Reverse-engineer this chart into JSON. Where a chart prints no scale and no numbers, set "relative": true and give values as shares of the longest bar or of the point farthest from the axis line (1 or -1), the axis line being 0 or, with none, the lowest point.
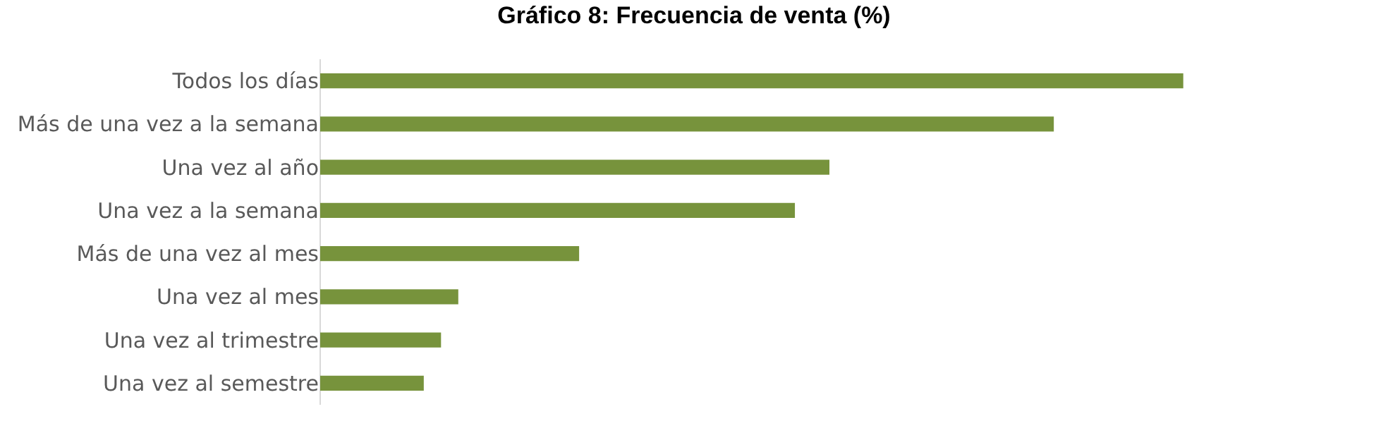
{
  "chart_data": {
    "type": "bar",
    "orientation": "horizontal",
    "relative": true,
    "title": "Gráfico 8: Frecuencia de venta (%)",
    "categories": [
      "Todos los días",
      "Más de una vez a la semana",
      "Una vez al año",
      "Una vez a la semana",
      "Más de una vez al mes",
      "Una vez al mes",
      "Una vez al trimestre",
      "Una vez al semestre"
    ],
    "values": [
      1,
      0.85,
      0.59,
      0.55,
      0.3,
      0.16,
      0.14,
      0.12
    ],
    "color": "#77933c"
  }
}
